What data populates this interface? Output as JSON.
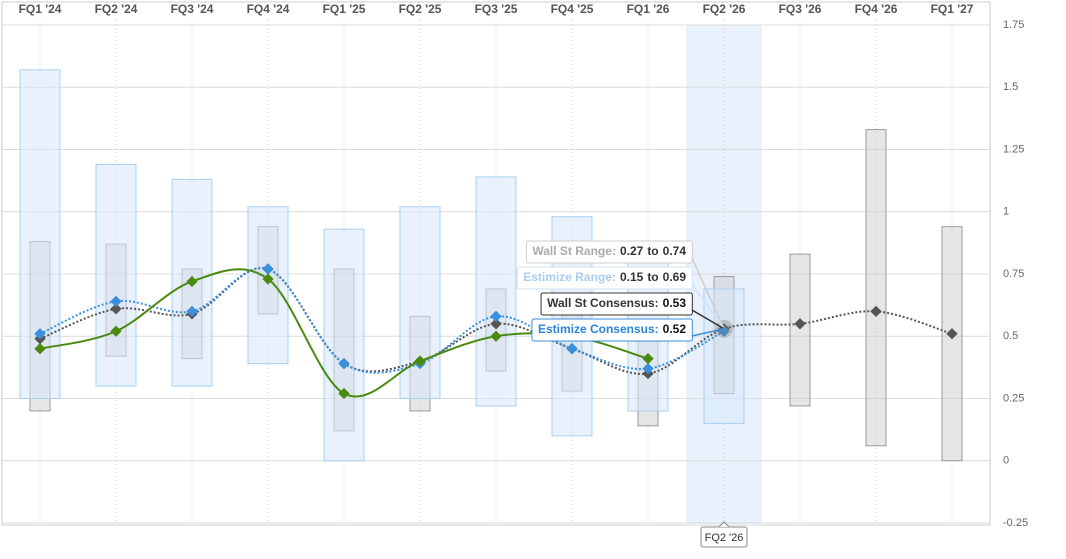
{
  "chart_data": {
    "type": "line",
    "categories": [
      "FQ1 '24",
      "FQ2 '24",
      "FQ3 '24",
      "FQ4 '24",
      "FQ1 '25",
      "FQ2 '25",
      "FQ3 '25",
      "FQ4 '25",
      "FQ1 '26",
      "FQ2 '26",
      "FQ3 '26",
      "FQ4 '26",
      "FQ1 '27"
    ],
    "ylim": [
      -0.25,
      1.75
    ],
    "yticks": [
      -0.25,
      0,
      0.25,
      0.5,
      0.75,
      1,
      1.25,
      1.5,
      1.75
    ],
    "grid": true,
    "highlight_index": 9,
    "label_separator": ":",
    "range_separator": "to",
    "series": [
      {
        "name": "Wall St Range",
        "type": "range",
        "color": "#9a9a9a",
        "low": [
          0.2,
          0.42,
          0.41,
          0.59,
          0.12,
          0.2,
          0.36,
          0.28,
          0.14,
          0.27,
          0.22,
          0.06,
          0
        ],
        "high": [
          0.88,
          0.87,
          0.77,
          0.94,
          0.77,
          0.58,
          0.69,
          0.6,
          0.55,
          0.74,
          0.83,
          1.33,
          0.94
        ]
      },
      {
        "name": "Estimize Range",
        "type": "range",
        "color": "#a8d0ef",
        "low": [
          0.25,
          0.3,
          0.3,
          0.39,
          0,
          0.25,
          0.22,
          0.1,
          0.2,
          0.15,
          null,
          null,
          null
        ],
        "high": [
          1.57,
          1.19,
          1.13,
          1.02,
          0.93,
          1.02,
          1.14,
          0.98,
          0.87,
          0.69,
          null,
          null,
          null
        ]
      },
      {
        "name": "Wall St Consensus",
        "type": "line",
        "color": "#555555",
        "values": [
          0.49,
          0.61,
          0.59,
          0.77,
          0.39,
          0.4,
          0.55,
          0.45,
          0.35,
          0.53,
          0.55,
          0.6,
          0.51
        ]
      },
      {
        "name": "Estimize Consensus",
        "type": "line",
        "color": "#3a8fdf",
        "values": [
          0.51,
          0.64,
          0.6,
          0.77,
          0.39,
          0.39,
          0.58,
          0.45,
          0.37,
          0.52,
          null,
          null,
          null
        ]
      },
      {
        "type": "line",
        "color": "#4a8a10",
        "solid": true,
        "values": [
          0.45,
          0.52,
          0.72,
          0.73,
          0.27,
          0.4,
          0.5,
          0.5,
          0.41,
          null,
          null,
          null,
          null
        ]
      }
    ]
  }
}
